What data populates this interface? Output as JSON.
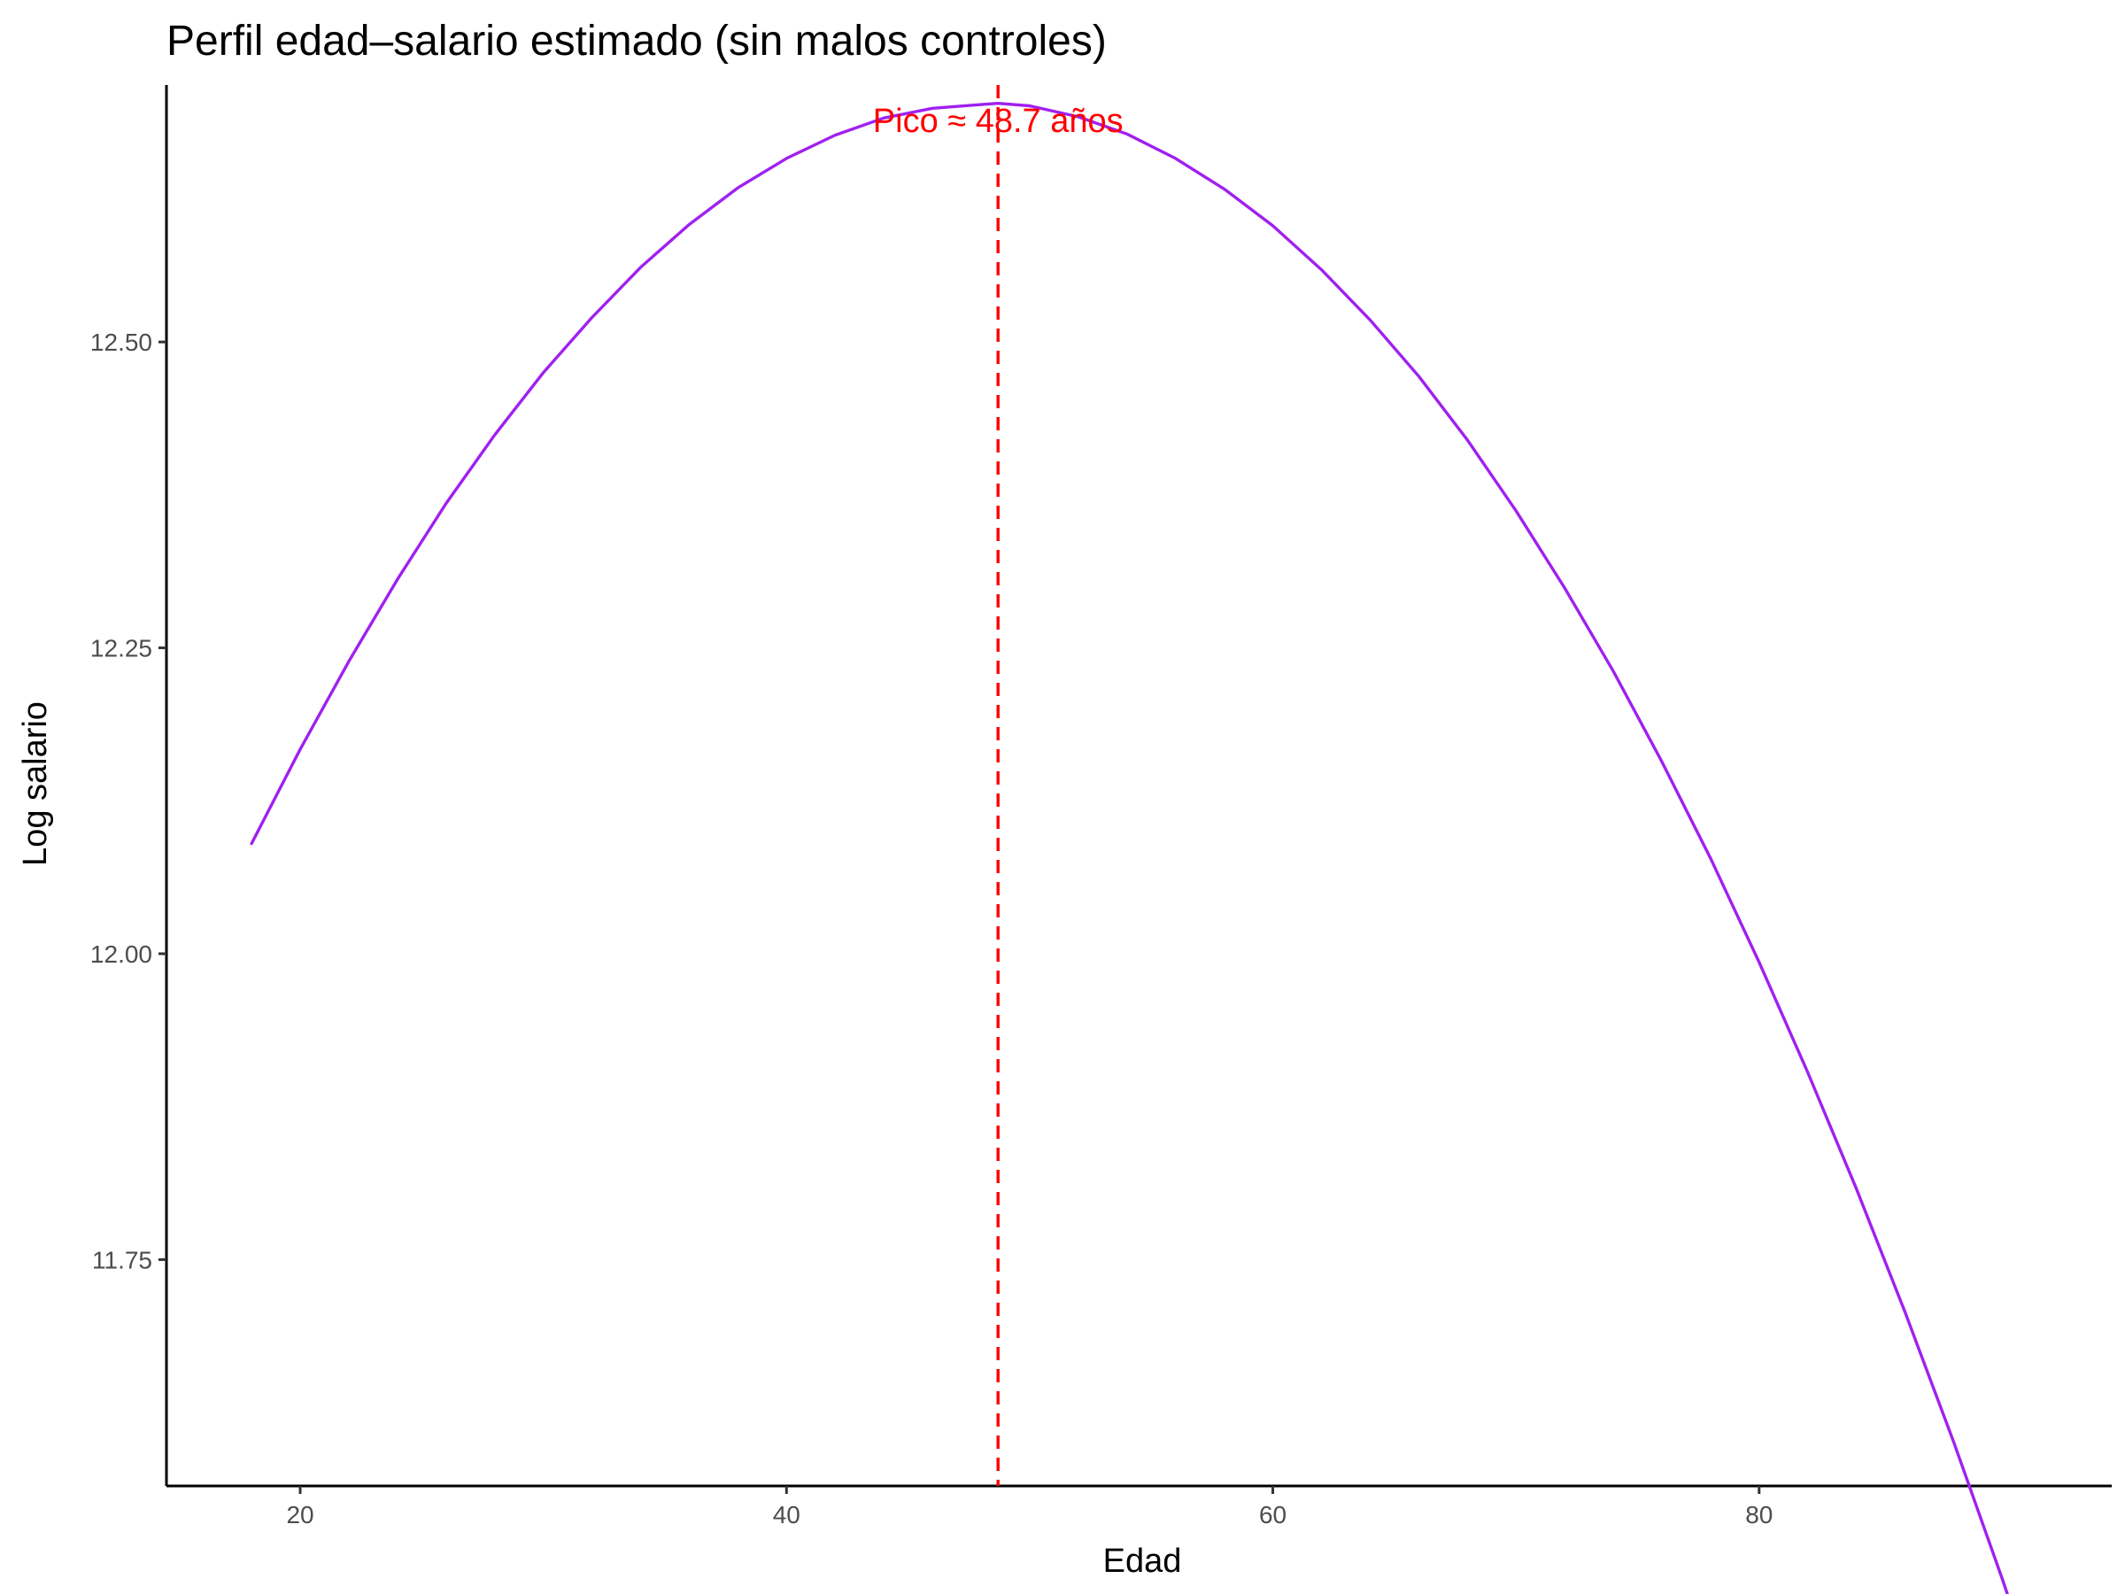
{
  "chart_data": {
    "type": "line",
    "title": "Perfil edad–salario estimado (sin malos controles)",
    "xlabel": "Edad",
    "ylabel": "Log salario",
    "xlim": [
      14.5,
      94.5
    ],
    "ylim": [
      11.565,
      12.71
    ],
    "x_ticks": [
      20,
      40,
      60,
      80
    ],
    "x_tick_labels": [
      "20",
      "40",
      "60",
      "80"
    ],
    "y_ticks": [
      11.75,
      12.0,
      12.25,
      12.5
    ],
    "y_tick_labels": [
      "11.75",
      "12.00",
      "12.25",
      "12.50"
    ],
    "grid": false,
    "legend": "none",
    "series": [
      {
        "color": "#A020F0",
        "x": [
          18,
          20,
          22,
          24,
          26,
          28,
          30,
          32,
          34,
          36,
          38,
          40,
          42,
          44,
          46,
          48,
          48.7,
          50,
          52,
          54,
          56,
          58,
          60,
          62,
          64,
          66,
          68,
          70,
          72,
          74,
          76,
          78,
          80,
          82,
          84,
          86,
          88,
          90,
          91
        ],
        "y": [
          12.09,
          12.167,
          12.239,
          12.306,
          12.368,
          12.424,
          12.475,
          12.52,
          12.561,
          12.596,
          12.626,
          12.65,
          12.669,
          12.683,
          12.691,
          12.694,
          12.695,
          12.693,
          12.684,
          12.67,
          12.65,
          12.625,
          12.595,
          12.559,
          12.518,
          12.472,
          12.42,
          12.362,
          12.299,
          12.231,
          12.157,
          12.078,
          11.993,
          11.903,
          11.808,
          11.707,
          11.601,
          11.489,
          11.43
        ]
      }
    ],
    "annotations": [
      {
        "type": "vline",
        "x": 48.7,
        "style": "dashed",
        "color": "#FF0000",
        "label": "Pico ≈ 48.7 años"
      }
    ]
  }
}
